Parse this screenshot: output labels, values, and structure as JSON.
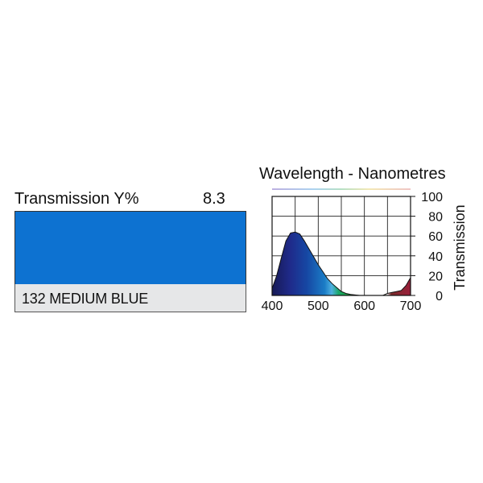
{
  "filter": {
    "transmission_label": "Transmission Y%",
    "transmission_value": "8.3",
    "name": "132 MEDIUM BLUE",
    "swatch_color": "#0d72d1"
  },
  "chart_data": {
    "type": "area",
    "title": "Wavelength - Nanometres",
    "xlabel": "",
    "ylabel": "Transmission",
    "xlim": [
      400,
      700
    ],
    "ylim": [
      0,
      100
    ],
    "x_ticks": [
      400,
      500,
      600,
      700
    ],
    "y_ticks": [
      0,
      20,
      40,
      60,
      80,
      100
    ],
    "grid": true,
    "series": [
      {
        "x": [
          400,
          410,
          420,
          430,
          440,
          450,
          460,
          470,
          480,
          490,
          500,
          510,
          520,
          530,
          540,
          550,
          560,
          570,
          580,
          590,
          600,
          610,
          620,
          630,
          640,
          650,
          660,
          670,
          680,
          690,
          700
        ],
        "y": [
          7,
          20,
          38,
          55,
          63,
          64,
          62,
          55,
          47,
          39,
          31,
          24,
          17,
          12,
          8,
          4,
          2,
          1,
          0.5,
          0,
          0,
          0,
          0,
          0,
          0,
          2,
          3,
          4,
          5,
          10,
          18
        ]
      }
    ]
  }
}
